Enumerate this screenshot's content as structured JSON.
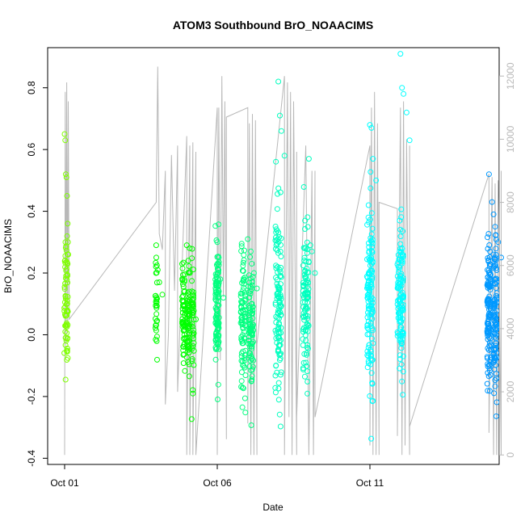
{
  "chart_data": {
    "type": "scatter",
    "title": "ATOM3 Southbound BrO_NOAACIMS",
    "xlabel": "Date",
    "ylabel": "BrO_NOAACIMS",
    "x_range_days": [
      0,
      15.6
    ],
    "x_ticks": [
      {
        "day": 0,
        "label": "Oct 01"
      },
      {
        "day": 5,
        "label": "Oct 06"
      },
      {
        "day": 10,
        "label": "Oct 11"
      }
    ],
    "ylim": [
      -0.42,
      0.93
    ],
    "y_ticks": [
      "-0.4",
      "-0.2",
      "0.0",
      "0.2",
      "0.4",
      "0.6",
      "0.8"
    ],
    "y_tick_values": [
      -0.4,
      -0.2,
      0.0,
      0.2,
      0.4,
      0.6,
      0.8
    ],
    "y2_range": [
      -300,
      12900
    ],
    "y2_ticks": [
      "0",
      "2000",
      "4000",
      "6000",
      "8000",
      "10000",
      "12000"
    ],
    "y2_tick_values": [
      0,
      2000,
      4000,
      6000,
      8000,
      10000,
      12000
    ],
    "grid": false,
    "series": [
      {
        "color": "#b8b8b8",
        "kind": "altitude-line",
        "axis": "right",
        "x": [
          0.0,
          0.02,
          0.05,
          0.07,
          0.1,
          0.12,
          0.15,
          3.0,
          3.05,
          3.1,
          3.2,
          3.3,
          3.3,
          3.4,
          3.5,
          3.6,
          3.7,
          3.7,
          4.0,
          4.0,
          4.1,
          4.1,
          4.2,
          4.2,
          4.3,
          4.3,
          5.0,
          5.0,
          5.05,
          5.1,
          5.15,
          5.2,
          5.25,
          5.3,
          5.3,
          6.0,
          6.0,
          6.05,
          6.1,
          6.15,
          6.2,
          6.25,
          6.3,
          6.3,
          7.2,
          7.2,
          7.3,
          7.35,
          7.4,
          7.45,
          7.5,
          7.6,
          7.6,
          7.6,
          7.9,
          8.0,
          8.1,
          8.15,
          8.2,
          8.2,
          10.0,
          10.0,
          10.05,
          10.1,
          10.15,
          10.2,
          10.25,
          10.3,
          10.3,
          10.9,
          10.9,
          11.0,
          11.05,
          11.1,
          11.15,
          11.2,
          11.3,
          11.3,
          11.3,
          13.9,
          13.9,
          14.0,
          14.05,
          14.1,
          14.15,
          14.2,
          14.3,
          14.3
        ],
        "y": [
          0,
          11500,
          3500,
          11800,
          4000,
          11200,
          4300,
          8000,
          12300,
          7000,
          6500,
          9000,
          1600,
          3800,
          9500,
          5200,
          9800,
          2000,
          10100,
          0,
          9800,
          0,
          9900,
          0,
          9600,
          0,
          11000,
          0,
          11000,
          3000,
          12000,
          5000,
          11200,
          500,
          10700,
          11000,
          1000,
          10500,
          0,
          10800,
          0,
          10600,
          0,
          3500,
          12000,
          0,
          11800,
          1200,
          11500,
          0,
          11200,
          0,
          9600,
          1200,
          9800,
          0,
          9000,
          0,
          9000,
          1200,
          9800,
          300,
          11000,
          0,
          11500,
          0,
          10500,
          0,
          8000,
          7800,
          600,
          11000,
          0,
          11200,
          300,
          10000,
          0,
          9800,
          900,
          8900,
          700,
          8800,
          0,
          8600,
          0,
          8700,
          0,
          9000
        ]
      },
      {
        "color": "#7FFF00",
        "x": [
          0.0,
          0.02,
          0.04,
          0.06,
          0.08,
          0.1,
          0.11,
          0.12
        ],
        "y": [
          0.65,
          0.63,
          0.52,
          0.51,
          0.45,
          0.36,
          0.3,
          0.26
        ]
      },
      {
        "color": "#00FF00",
        "x": [
          3.0,
          3.05,
          3.1,
          3.2,
          4.0,
          4.05,
          4.1,
          4.2,
          4.3
        ],
        "y": [
          0.29,
          0.21,
          0.17,
          0.13,
          0.29,
          0.24,
          0.2,
          0.1,
          0.05
        ]
      },
      {
        "color": "#00FF7F",
        "x": [
          5.0,
          5.05,
          5.1,
          5.2,
          6.0,
          6.1,
          6.2,
          6.3
        ],
        "y": [
          0.3,
          0.25,
          0.18,
          0.12,
          0.31,
          0.27,
          0.2,
          0.15
        ]
      },
      {
        "color": "#00FFBF",
        "x": [
          7.0,
          7.05,
          7.1,
          7.2,
          8.0,
          8.05,
          8.1,
          8.2
        ],
        "y": [
          0.82,
          0.71,
          0.66,
          0.58,
          0.57,
          0.29,
          0.27,
          0.2
        ]
      },
      {
        "color": "#00FFFF",
        "x": [
          10.0,
          10.05,
          10.1,
          10.2,
          11.0,
          11.05,
          11.1,
          11.2,
          11.3
        ],
        "y": [
          0.68,
          0.67,
          0.57,
          0.5,
          0.91,
          0.8,
          0.78,
          0.72,
          0.63
        ]
      },
      {
        "color": "#0099FF",
        "x": [
          13.9,
          14.0,
          14.05,
          14.1,
          14.2,
          14.3
        ],
        "y": [
          0.52,
          0.43,
          0.39,
          0.35,
          0.3,
          0.25
        ]
      }
    ],
    "dense_columns": [
      {
        "day": 0.05,
        "spread": 0.06,
        "n": 70,
        "center": 0.12,
        "sd": 0.11,
        "color": "#7FFF00"
      },
      {
        "day": 3.0,
        "spread": 0.03,
        "n": 30,
        "center": 0.1,
        "sd": 0.08,
        "color": "#00FF00"
      },
      {
        "day": 3.9,
        "spread": 0.05,
        "n": 60,
        "center": 0.06,
        "sd": 0.08,
        "color": "#00FF00"
      },
      {
        "day": 4.05,
        "spread": 0.05,
        "n": 60,
        "center": 0.05,
        "sd": 0.08,
        "color": "#00FF00"
      },
      {
        "day": 4.2,
        "spread": 0.04,
        "n": 40,
        "center": 0.04,
        "sd": 0.09,
        "color": "#00FF00"
      },
      {
        "day": 5.0,
        "spread": 0.06,
        "n": 110,
        "center": 0.08,
        "sd": 0.1,
        "color": "#00FF7F"
      },
      {
        "day": 5.85,
        "spread": 0.08,
        "n": 90,
        "center": 0.03,
        "sd": 0.11,
        "color": "#00FF7F"
      },
      {
        "day": 6.1,
        "spread": 0.08,
        "n": 90,
        "center": 0.02,
        "sd": 0.11,
        "color": "#00FF7F"
      },
      {
        "day": 7.0,
        "spread": 0.1,
        "n": 120,
        "center": 0.1,
        "sd": 0.15,
        "color": "#00FFBF"
      },
      {
        "day": 7.9,
        "spread": 0.1,
        "n": 100,
        "center": 0.1,
        "sd": 0.12,
        "color": "#00FFBF"
      },
      {
        "day": 10.0,
        "spread": 0.1,
        "n": 130,
        "center": 0.12,
        "sd": 0.16,
        "color": "#00FFFF"
      },
      {
        "day": 11.0,
        "spread": 0.1,
        "n": 120,
        "center": 0.12,
        "sd": 0.12,
        "color": "#00FFFF"
      },
      {
        "day": 13.9,
        "spread": 0.06,
        "n": 120,
        "center": 0.06,
        "sd": 0.12,
        "color": "#0099FF"
      },
      {
        "day": 14.1,
        "spread": 0.06,
        "n": 100,
        "center": 0.05,
        "sd": 0.12,
        "color": "#0099FF"
      }
    ]
  }
}
